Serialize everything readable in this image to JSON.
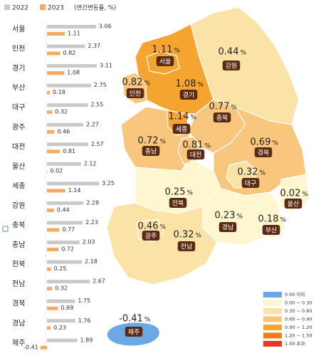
{
  "chart_data": {
    "type": "bar",
    "categories": [
      "서울",
      "인천",
      "경기",
      "부산",
      "대구",
      "광주",
      "대전",
      "울산",
      "세종",
      "강원",
      "충북",
      "충남",
      "전북",
      "전남",
      "경북",
      "경남",
      "제주"
    ],
    "series": [
      {
        "name": "2022",
        "color": "#c9c9c9",
        "values": [
          3.06,
          2.37,
          3.11,
          2.75,
          2.55,
          2.27,
          2.57,
          2.12,
          3.25,
          2.28,
          2.23,
          2.03,
          2.18,
          2.67,
          1.75,
          1.76,
          1.89
        ]
      },
      {
        "name": "2023",
        "color": "#f7ab62",
        "values": [
          1.11,
          0.82,
          1.08,
          0.18,
          0.32,
          0.46,
          0.81,
          0.02,
          1.14,
          0.44,
          0.77,
          0.72,
          0.25,
          0.32,
          0.69,
          0.23,
          -0.41
        ]
      }
    ],
    "legend_note": "(연간변동률, %)",
    "unit": "%",
    "map_legend": {
      "labels": [
        "0.00 이하",
        "0.00 ~ 0.30",
        "0.30 ~ 0.60",
        "0.60 ~ 0.90",
        "0.90 ~ 1.20",
        "1.20 ~ 1.50",
        "1.50 초과"
      ],
      "breaks": [
        0,
        0.3,
        0.6,
        0.9,
        1.2,
        1.5
      ],
      "colors": [
        "#6aa8e6",
        "#fdf6cf",
        "#fbe3a8",
        "#f8c77d",
        "#f5a430",
        "#ee7d1c",
        "#e33a1f"
      ]
    }
  }
}
